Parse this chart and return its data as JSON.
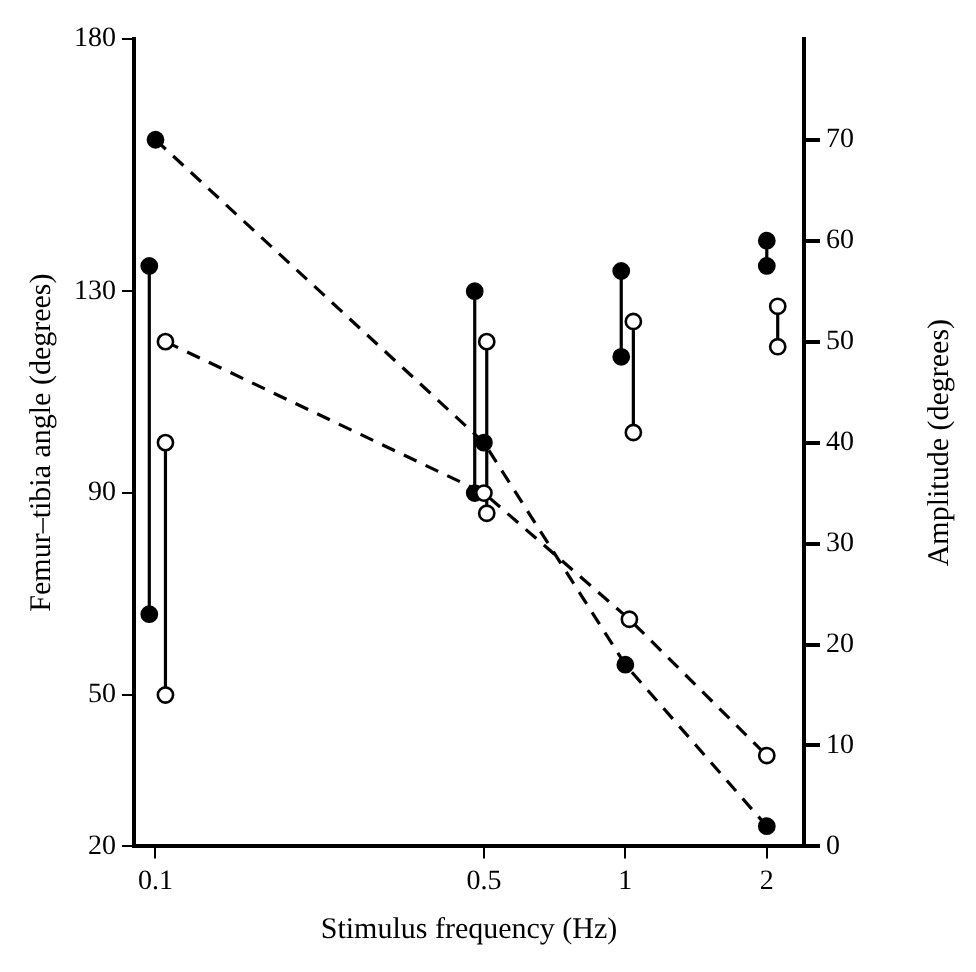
{
  "chart_data": {
    "type": "line",
    "xlabel": "Stimulus frequency (Hz)",
    "ylabel": "Femur–tibia angle (degrees)",
    "y2label": "Amplitude (degrees)",
    "log": "x",
    "xlim": [
      0.09,
      2.4
    ],
    "xticks": [
      0.1,
      0.5,
      1,
      2
    ],
    "ylim": [
      20,
      180
    ],
    "yticks": [
      20,
      50,
      90,
      130,
      180
    ],
    "y2lim": [
      0,
      80
    ],
    "y2ticks": [
      0,
      10,
      20,
      30,
      40,
      50,
      60,
      70
    ],
    "grid": false,
    "legend": false,
    "marker": "circle",
    "line_style": "solid",
    "series": [
      {
        "color": "#000000",
        "x": [
          0.097,
          0.097
        ],
        "values": [
          135,
          66
        ]
      },
      {
        "color": "#ffffff",
        "x": [
          0.105,
          0.105
        ],
        "values": [
          100,
          50
        ]
      },
      {
        "color": "#000000",
        "x": [
          0.478,
          0.478
        ],
        "values": [
          130,
          90
        ]
      },
      {
        "color": "#ffffff",
        "x": [
          0.507,
          0.507
        ],
        "values": [
          120,
          86
        ]
      },
      {
        "color": "#000000",
        "x": [
          0.98,
          0.98
        ],
        "values": [
          134,
          117
        ]
      },
      {
        "color": "#ffffff",
        "x": [
          1.04,
          1.04
        ],
        "values": [
          124,
          102
        ]
      },
      {
        "color": "#000000",
        "x": [
          2.0,
          2.0
        ],
        "values": [
          140,
          135
        ]
      },
      {
        "color": "#ffffff",
        "x": [
          2.11,
          2.11
        ],
        "values": [
          127,
          119
        ]
      },
      {
        "color": "#000000",
        "axis": "y2",
        "line_style": "dashed",
        "x": [
          0.1,
          0.5,
          1,
          2
        ],
        "values": [
          70,
          40,
          18,
          2
        ]
      },
      {
        "color": "#ffffff",
        "axis": "y2",
        "line_style": "dashed",
        "x": [
          0.105,
          0.5,
          1.02,
          2
        ],
        "values": [
          50,
          35,
          22.5,
          9
        ]
      }
    ]
  }
}
